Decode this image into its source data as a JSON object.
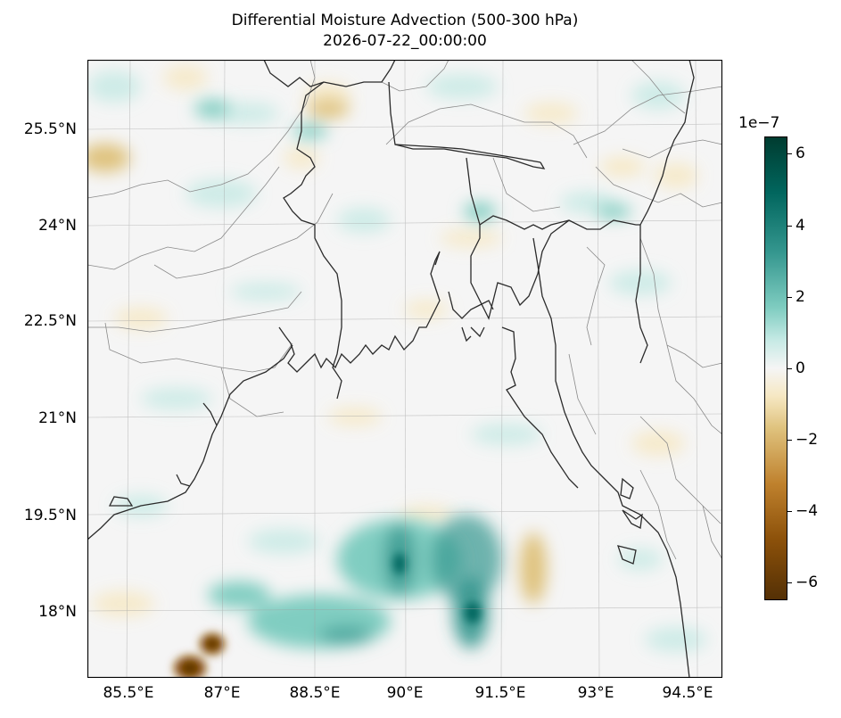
{
  "title": "Differential Moisture Advection (500-300 hPa)",
  "timestamp": "2026-07-22_00:00:00",
  "map": {
    "projection": "lat-lon",
    "lon_range": [
      84.5,
      95.0
    ],
    "lat_range": [
      16.9,
      26.5
    ],
    "lon_ticks": [
      "85.5°E",
      "87°E",
      "88.5°E",
      "90°E",
      "91.5°E",
      "93°E",
      "94.5°E"
    ],
    "lat_ticks": [
      "25.5°N",
      "24°N",
      "22.5°N",
      "21°N",
      "19.5°N",
      "18°N"
    ],
    "gridlines": true,
    "colormap": "BrBG",
    "features": [
      "coastline",
      "country borders",
      "state borders",
      "Bay of Bengal"
    ]
  },
  "colorbar": {
    "exponent": "1e−7",
    "range": [
      -6.5,
      6.5
    ],
    "tick_labels": [
      "6",
      "4",
      "2",
      "0",
      "−2",
      "−4",
      "−6"
    ],
    "colors": {
      "max": "#003c30",
      "mid": "#f5f5f5",
      "min": "#543005"
    }
  },
  "field_anomalies": [
    {
      "lon": 86.8,
      "lat": 17.3,
      "value": -6.0
    },
    {
      "lon": 87.2,
      "lat": 17.6,
      "value": -5.0
    },
    {
      "lon": 91.1,
      "lat": 17.9,
      "value": 3.5
    },
    {
      "lon": 89.9,
      "lat": 18.7,
      "value": 3.0
    },
    {
      "lon": 88.7,
      "lat": 17.6,
      "value": 2.5
    },
    {
      "lon": 92.0,
      "lat": 18.5,
      "value": -1.5
    },
    {
      "lon": 85.3,
      "lat": 25.0,
      "value": -1.8
    },
    {
      "lon": 88.5,
      "lat": 26.0,
      "value": -2.0
    },
    {
      "lon": 88.2,
      "lat": 25.7,
      "value": 1.8
    },
    {
      "lon": 86.5,
      "lat": 25.8,
      "value": 1.5
    },
    {
      "lon": 92.4,
      "lat": 24.2,
      "value": 1.6
    },
    {
      "lon": 90.8,
      "lat": 24.3,
      "value": 1.4
    },
    {
      "lon": 93.5,
      "lat": 24.9,
      "value": -1.2
    }
  ]
}
